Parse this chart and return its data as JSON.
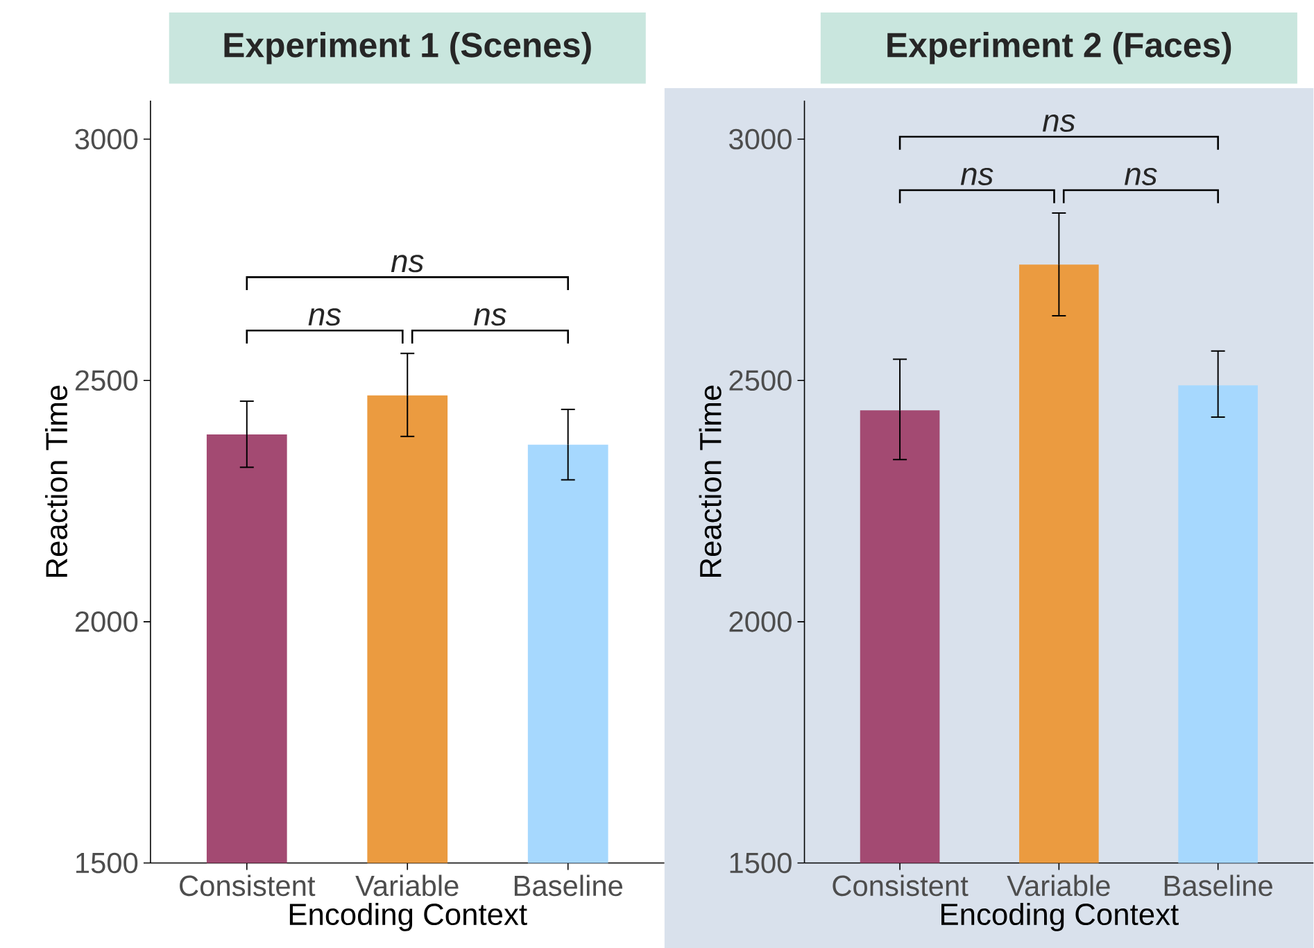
{
  "chart_data": [
    {
      "type": "bar",
      "title": "Experiment 1 (Scenes)",
      "xlabel": "Encoding Context",
      "ylabel": "Reaction Time",
      "categories": [
        "Consistent",
        "Variable",
        "Baseline"
      ],
      "values": [
        2388,
        2469,
        2367
      ],
      "colors": [
        "#a34a72",
        "#eb9b40",
        "#a6d8fe"
      ],
      "errors": [
        [
          2320,
          2457
        ],
        [
          2384,
          2556
        ],
        [
          2294,
          2440
        ]
      ],
      "ylim": [
        1500,
        3080
      ],
      "yticks": [
        1500,
        2000,
        2500,
        3000
      ],
      "annotations": [
        "ns",
        "ns",
        "ns"
      ]
    },
    {
      "type": "bar",
      "title": "Experiment 2 (Faces)",
      "xlabel": "Encoding Context",
      "ylabel": "Reaction Time",
      "categories": [
        "Consistent",
        "Variable",
        "Baseline"
      ],
      "values": [
        2438,
        2740,
        2490
      ],
      "colors": [
        "#a34a72",
        "#eb9b40",
        "#a6d8fe"
      ],
      "errors": [
        [
          2336,
          2544
        ],
        [
          2634,
          2847
        ],
        [
          2424,
          2561
        ]
      ],
      "ylim": [
        1500,
        3080
      ],
      "yticks": [
        1500,
        2000,
        2500,
        3000
      ],
      "annotations": [
        "ns",
        "ns",
        "ns"
      ]
    }
  ]
}
